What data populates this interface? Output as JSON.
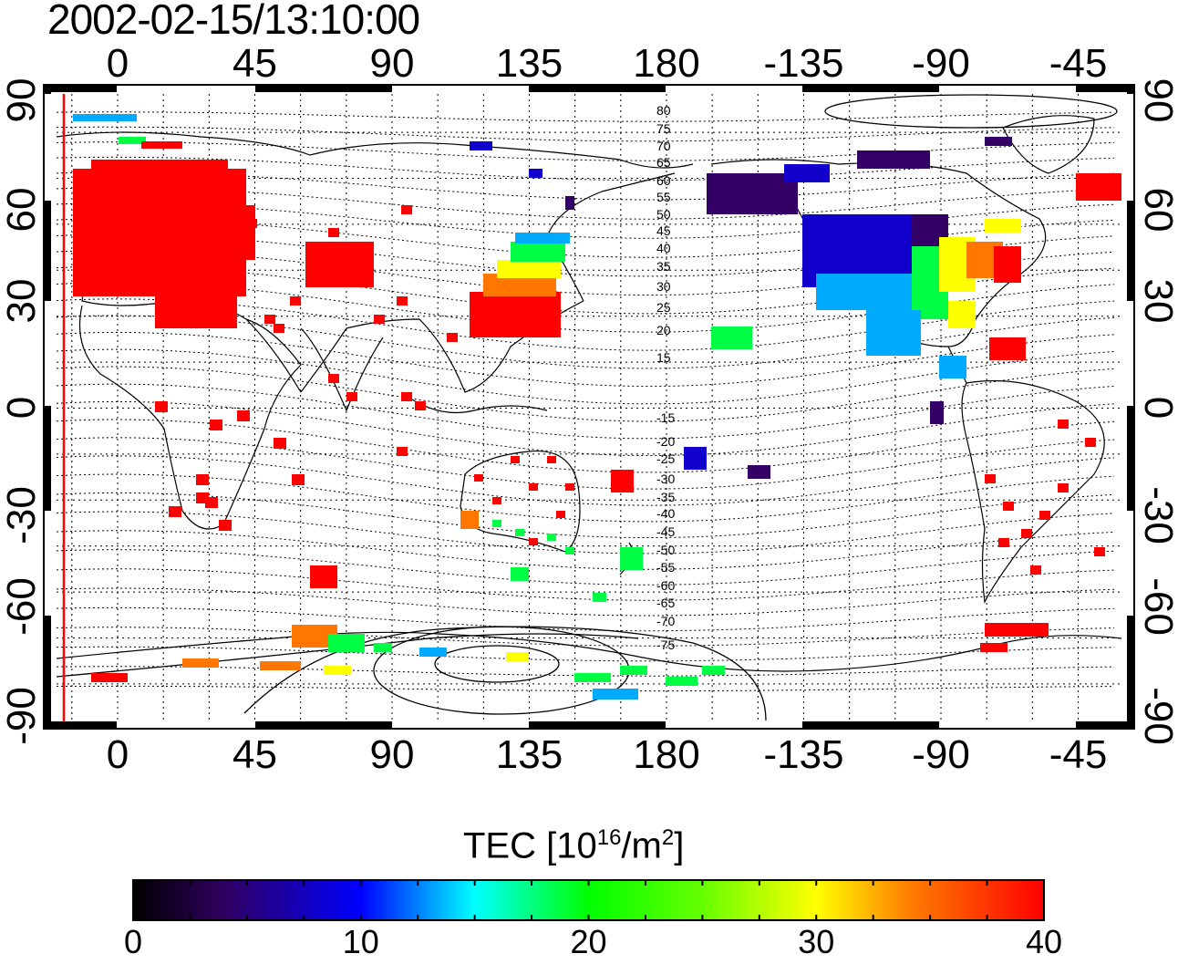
{
  "timestamp": "2002-02-15/13:10:00",
  "map": {
    "lon_ticks": [
      "0",
      "45",
      "90",
      "135",
      "180",
      "-135",
      "-90",
      "-45"
    ],
    "lat_ticks": [
      "90",
      "60",
      "30",
      "0",
      "-30",
      "-60",
      "-90"
    ],
    "mlat_labels": [
      "80",
      "75",
      "70",
      "65",
      "60",
      "55",
      "50",
      "45",
      "40",
      "35",
      "30",
      "25",
      "20",
      "15",
      "-15",
      "-20",
      "-25",
      "-30",
      "-35",
      "-40",
      "-45",
      "-50",
      "-55",
      "-60",
      "-65",
      "-70",
      "-75"
    ]
  },
  "colorbar": {
    "title_prefix": "TEC  [10",
    "title_exp1": "16",
    "title_mid": "/m",
    "title_exp2": "2",
    "title_suffix": "]",
    "ticks": [
      "0",
      "10",
      "20",
      "30",
      "40"
    ],
    "min": 0,
    "max": 40
  },
  "colors": {
    "very_high": "#ff0000",
    "high": "#ff7700",
    "mid": "#ffff00",
    "lowmid": "#00ff44",
    "low": "#00aaff",
    "verylow": "#1100cc",
    "minimum": "#330066"
  }
}
